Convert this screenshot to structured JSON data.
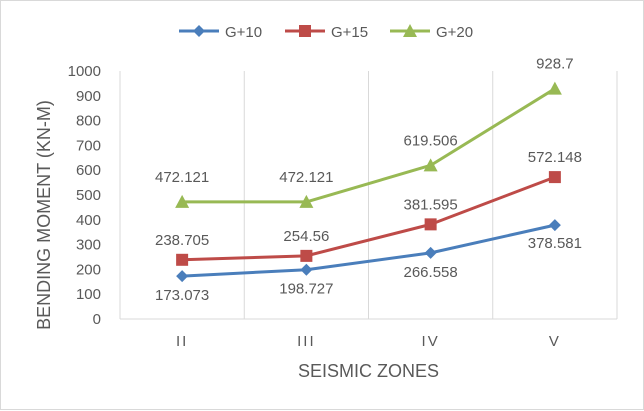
{
  "chart_data": {
    "type": "line",
    "categories": [
      "II",
      "III",
      "IV",
      "V"
    ],
    "series": [
      {
        "name": "G+10",
        "values": [
          173.073,
          198.727,
          266.558,
          378.581
        ],
        "labels": [
          "173.073",
          "198.727",
          "266.558",
          "378.581"
        ],
        "color": "#4a7ebb",
        "marker": "diamond"
      },
      {
        "name": "G+15",
        "values": [
          238.705,
          254.56,
          381.595,
          572.148
        ],
        "labels": [
          "238.705",
          "254.56",
          "381.595",
          "572.148"
        ],
        "color": "#be4b48",
        "marker": "square"
      },
      {
        "name": "G+20",
        "values": [
          472.121,
          472.121,
          619.506,
          928.7
        ],
        "labels": [
          "472.121",
          "472.121",
          "619.506",
          "928.7"
        ],
        "color": "#98b954",
        "marker": "triangle"
      }
    ],
    "xlabel": "SEISMIC ZONES",
    "ylabel": "BENDING MOMENT (KN-M)",
    "ylim": [
      0,
      1000
    ],
    "yticks": [
      "0",
      "100",
      "200",
      "300",
      "400",
      "500",
      "600",
      "700",
      "800",
      "900",
      "1000"
    ],
    "grid": "vertical",
    "legend": "top-center"
  }
}
